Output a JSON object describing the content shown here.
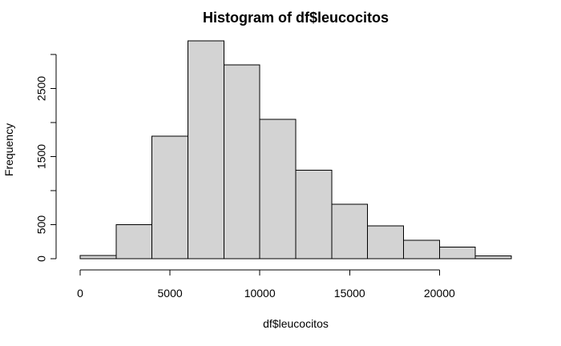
{
  "chart_data": {
    "type": "bar",
    "title": "Histogram of df$leucocitos",
    "xlabel": "df$leucocitos",
    "ylabel": "Frequency",
    "bin_edges": [
      0,
      2000,
      4000,
      6000,
      8000,
      10000,
      12000,
      14000,
      16000,
      18000,
      20000,
      22000,
      24000
    ],
    "values": [
      50,
      500,
      1800,
      3200,
      2850,
      2050,
      1300,
      800,
      480,
      270,
      170,
      40
    ],
    "xlim": [
      0,
      24000
    ],
    "ylim": [
      0,
      3200
    ],
    "x_ticks": [
      0,
      5000,
      10000,
      15000,
      20000
    ],
    "x_tick_labels": [
      "0",
      "5000",
      "10000",
      "15000",
      "20000"
    ],
    "y_ticks": [
      0,
      500,
      1500,
      2500
    ],
    "y_tick_labels": [
      "0",
      "500",
      "1500",
      "2500"
    ],
    "y_minor_ticks": [
      1000,
      2000,
      3000
    ],
    "grid": false,
    "legend": "none",
    "colors": {
      "bar_fill": "#d3d3d3",
      "bar_stroke": "#000000",
      "text": "#000000",
      "background": "#ffffff"
    }
  }
}
